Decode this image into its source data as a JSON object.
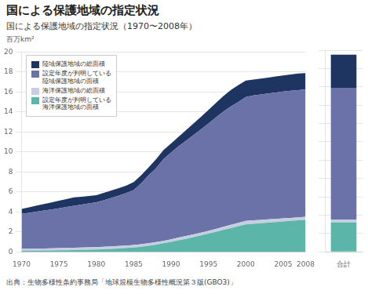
{
  "chart_data": [
    {
      "type": "area",
      "title": "国による保護地域の指定状況",
      "subtitle": "国による保護地域の指定状況（1970〜2008年）",
      "y_label": "百万km²",
      "source": "出典：生物多様性条約事務局「地球規模生物多様性概況第３版(GBO3)」",
      "x": [
        1970,
        1971,
        1972,
        1973,
        1974,
        1975,
        1976,
        1977,
        1978,
        1979,
        1980,
        1981,
        1982,
        1983,
        1984,
        1985,
        1986,
        1987,
        1988,
        1989,
        1990,
        1991,
        1992,
        1993,
        1994,
        1995,
        1996,
        1997,
        1998,
        1999,
        2000,
        2001,
        2002,
        2003,
        2004,
        2005,
        2006,
        2007,
        2008
      ],
      "series": [
        {
          "name": "設定年度が判明している\n海洋保護地域の面積",
          "color": "#5bb5a8",
          "values": [
            0.1,
            0.11,
            0.12,
            0.13,
            0.14,
            0.15,
            0.16,
            0.17,
            0.19,
            0.21,
            0.23,
            0.26,
            0.29,
            0.33,
            0.38,
            0.43,
            0.5,
            0.6,
            0.72,
            0.86,
            1.0,
            1.15,
            1.3,
            1.46,
            1.64,
            1.82,
            2.0,
            2.2,
            2.38,
            2.56,
            2.74,
            2.8,
            2.86,
            2.92,
            2.98,
            3.04,
            3.1,
            3.15,
            3.2
          ]
        },
        {
          "name": "海洋保護地域の総面積",
          "color": "#c5cfe0",
          "values": [
            0.2,
            0.2,
            0.2,
            0.2,
            0.2,
            0.21,
            0.22,
            0.23,
            0.23,
            0.23,
            0.23,
            0.24,
            0.25,
            0.25,
            0.25,
            0.25,
            0.26,
            0.26,
            0.26,
            0.24,
            0.25,
            0.27,
            0.28,
            0.28,
            0.28,
            0.28,
            0.3,
            0.3,
            0.32,
            0.34,
            0.36,
            0.35,
            0.34,
            0.33,
            0.32,
            0.31,
            0.3,
            0.3,
            0.3
          ]
        },
        {
          "name": "設定年度が判明している\n陸域保護地域の面積",
          "color": "#6b72a8",
          "values": [
            3.5,
            3.6,
            3.7,
            3.8,
            3.9,
            4.0,
            4.1,
            4.2,
            4.3,
            4.4,
            4.5,
            4.65,
            4.85,
            5.05,
            5.25,
            5.5,
            6.1,
            6.8,
            7.4,
            8.2,
            8.7,
            9.15,
            9.55,
            9.95,
            10.35,
            10.75,
            11.15,
            11.55,
            11.85,
            12.1,
            12.4,
            12.5,
            12.55,
            12.6,
            12.65,
            12.7,
            12.72,
            12.74,
            12.76
          ]
        },
        {
          "name": "陸域保護地域の総面積",
          "color": "#1e3461",
          "values": [
            0.5,
            0.55,
            0.6,
            0.65,
            0.7,
            0.75,
            0.8,
            0.85,
            0.8,
            0.75,
            0.7,
            0.75,
            0.75,
            0.75,
            0.75,
            0.8,
            0.8,
            0.8,
            0.9,
            0.9,
            0.9,
            0.95,
            1.05,
            1.15,
            1.25,
            1.35,
            1.45,
            1.55,
            1.65,
            1.7,
            1.65,
            1.6,
            1.6,
            1.6,
            1.6,
            1.6,
            1.63,
            1.66,
            1.64
          ]
        }
      ],
      "stacked": true,
      "xlim": [
        1970,
        2008
      ],
      "xticks": [
        1970,
        1975,
        1980,
        1985,
        1990,
        1995,
        2000,
        2005,
        2008
      ],
      "ylim": [
        0,
        20
      ],
      "yticks": [
        0,
        2,
        4,
        6,
        8,
        10,
        12,
        14,
        16,
        18,
        20
      ],
      "grid": true,
      "legend": "upper left"
    },
    {
      "type": "bar",
      "categories": [
        "合計"
      ],
      "series": [
        {
          "color": "#5bb5a8",
          "values": [
            3.2
          ]
        },
        {
          "color": "#c5cfe0",
          "values": [
            0.3
          ]
        },
        {
          "color": "#6b72a8",
          "values": [
            14.4
          ]
        },
        {
          "color": "#1e3461",
          "values": [
            3.6
          ]
        }
      ],
      "stacked": true,
      "ylim": [
        0,
        22
      ],
      "yticks": [
        0,
        2,
        4,
        6,
        8,
        10,
        12,
        14,
        16,
        18,
        20,
        22
      ],
      "grid": true,
      "tick_labels": "x"
    }
  ]
}
